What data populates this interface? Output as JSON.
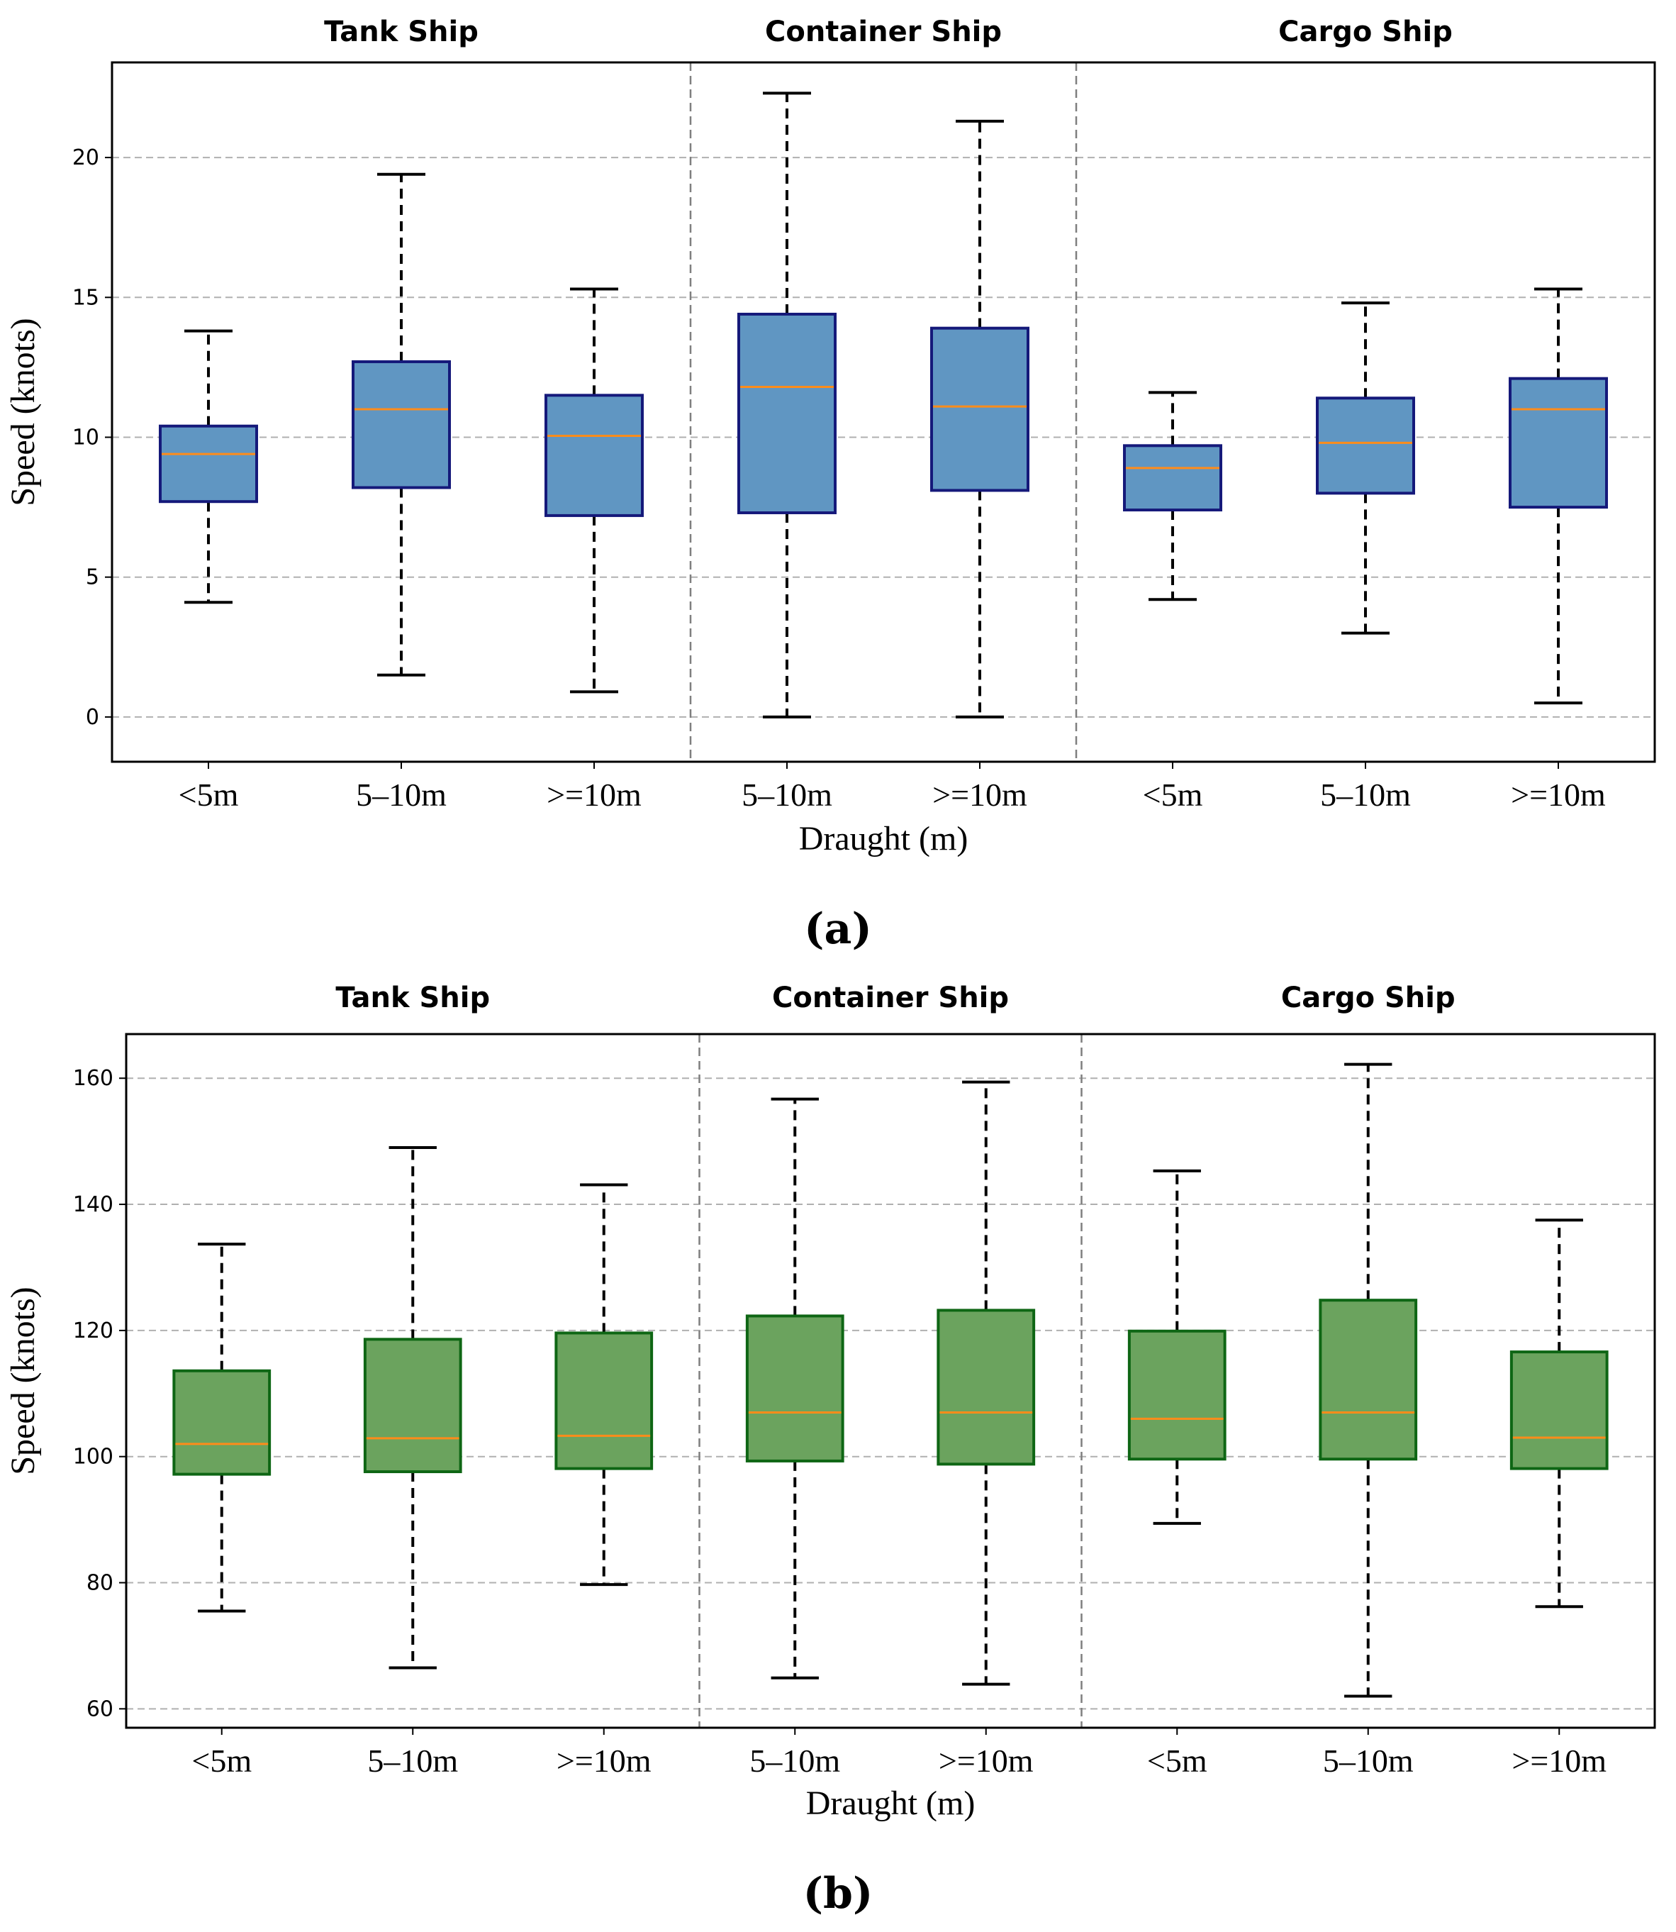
{
  "figure": {
    "panels": [
      "(a)",
      "(b)"
    ]
  },
  "chart_data": [
    {
      "type": "boxplot",
      "panel_label": "(a)",
      "title": "",
      "xlabel": "Draught (m)",
      "ylabel": "Speed (knots)",
      "ylim": [
        -1.6,
        23.4
      ],
      "yticks": [
        0,
        5,
        10,
        15,
        20
      ],
      "grid": "horizontal dashed",
      "colors": {
        "box_fill": "#6096c2",
        "box_edge": "#15197a",
        "median": "#ff8c1a",
        "whisker": "#000000"
      },
      "groups": [
        {
          "name": "Tank Ship",
          "categories": [
            "<5m",
            "5–10m",
            ">=10m"
          ]
        },
        {
          "name": "Container Ship",
          "categories": [
            "5–10m",
            ">=10m"
          ]
        },
        {
          "name": "Cargo Ship",
          "categories": [
            "<5m",
            "5–10m",
            ">=10m"
          ]
        }
      ],
      "boxes": [
        {
          "group": "Tank Ship",
          "category": "<5m",
          "whislo": 4.1,
          "q1": 7.7,
          "med": 9.4,
          "q3": 10.4,
          "whishi": 13.8
        },
        {
          "group": "Tank Ship",
          "category": "5–10m",
          "whislo": 1.5,
          "q1": 8.2,
          "med": 11.0,
          "q3": 12.7,
          "whishi": 19.4
        },
        {
          "group": "Tank Ship",
          "category": ">=10m",
          "whislo": 0.9,
          "q1": 7.2,
          "med": 10.05,
          "q3": 11.5,
          "whishi": 15.3
        },
        {
          "group": "Container Ship",
          "category": "5–10m",
          "whislo": 0.0,
          "q1": 7.3,
          "med": 11.8,
          "q3": 14.4,
          "whishi": 22.3
        },
        {
          "group": "Container Ship",
          "category": ">=10m",
          "whislo": 0.0,
          "q1": 8.1,
          "med": 11.1,
          "q3": 13.9,
          "whishi": 21.3
        },
        {
          "group": "Cargo Ship",
          "category": "<5m",
          "whislo": 4.2,
          "q1": 7.4,
          "med": 8.9,
          "q3": 9.7,
          "whishi": 11.6
        },
        {
          "group": "Cargo Ship",
          "category": "5–10m",
          "whislo": 3.0,
          "q1": 8.0,
          "med": 9.8,
          "q3": 11.4,
          "whishi": 14.8
        },
        {
          "group": "Cargo Ship",
          "category": ">=10m",
          "whislo": 0.5,
          "q1": 7.5,
          "med": 11.0,
          "q3": 12.1,
          "whishi": 15.3
        }
      ]
    },
    {
      "type": "boxplot",
      "panel_label": "(b)",
      "title": "",
      "xlabel": "Draught (m)",
      "ylabel": "Speed (knots)",
      "ylim": [
        57,
        167
      ],
      "yticks": [
        60,
        80,
        100,
        120,
        140,
        160
      ],
      "grid": "horizontal dashed",
      "colors": {
        "box_fill": "#6ba35e",
        "box_edge": "#0e6614",
        "median": "#ff8c1a",
        "whisker": "#000000"
      },
      "groups": [
        {
          "name": "Tank Ship",
          "categories": [
            "<5m",
            "5–10m",
            ">=10m"
          ]
        },
        {
          "name": "Container Ship",
          "categories": [
            "5–10m",
            ">=10m"
          ]
        },
        {
          "name": "Cargo Ship",
          "categories": [
            "<5m",
            "5–10m",
            ">=10m"
          ]
        }
      ],
      "boxes": [
        {
          "group": "Tank Ship",
          "category": "<5m",
          "whislo": 75.5,
          "q1": 97.2,
          "med": 102.0,
          "q3": 113.6,
          "whishi": 133.7
        },
        {
          "group": "Tank Ship",
          "category": "5–10m",
          "whislo": 66.5,
          "q1": 97.6,
          "med": 102.9,
          "q3": 118.6,
          "whishi": 149.0
        },
        {
          "group": "Tank Ship",
          "category": ">=10m",
          "whislo": 79.7,
          "q1": 98.1,
          "med": 103.3,
          "q3": 119.6,
          "whishi": 143.1
        },
        {
          "group": "Container Ship",
          "category": "5–10m",
          "whislo": 64.9,
          "q1": 99.3,
          "med": 107.0,
          "q3": 122.3,
          "whishi": 156.7
        },
        {
          "group": "Container Ship",
          "category": ">=10m",
          "whislo": 63.9,
          "q1": 98.8,
          "med": 107.0,
          "q3": 123.2,
          "whishi": 159.4
        },
        {
          "group": "Cargo Ship",
          "category": "<5m",
          "whislo": 89.4,
          "q1": 99.6,
          "med": 106.0,
          "q3": 119.9,
          "whishi": 145.3
        },
        {
          "group": "Cargo Ship",
          "category": "5–10m",
          "whislo": 62.0,
          "q1": 99.6,
          "med": 107.0,
          "q3": 124.8,
          "whishi": 162.2
        },
        {
          "group": "Cargo Ship",
          "category": ">=10m",
          "whislo": 76.2,
          "q1": 98.1,
          "med": 103.0,
          "q3": 116.6,
          "whishi": 137.5
        }
      ]
    }
  ]
}
